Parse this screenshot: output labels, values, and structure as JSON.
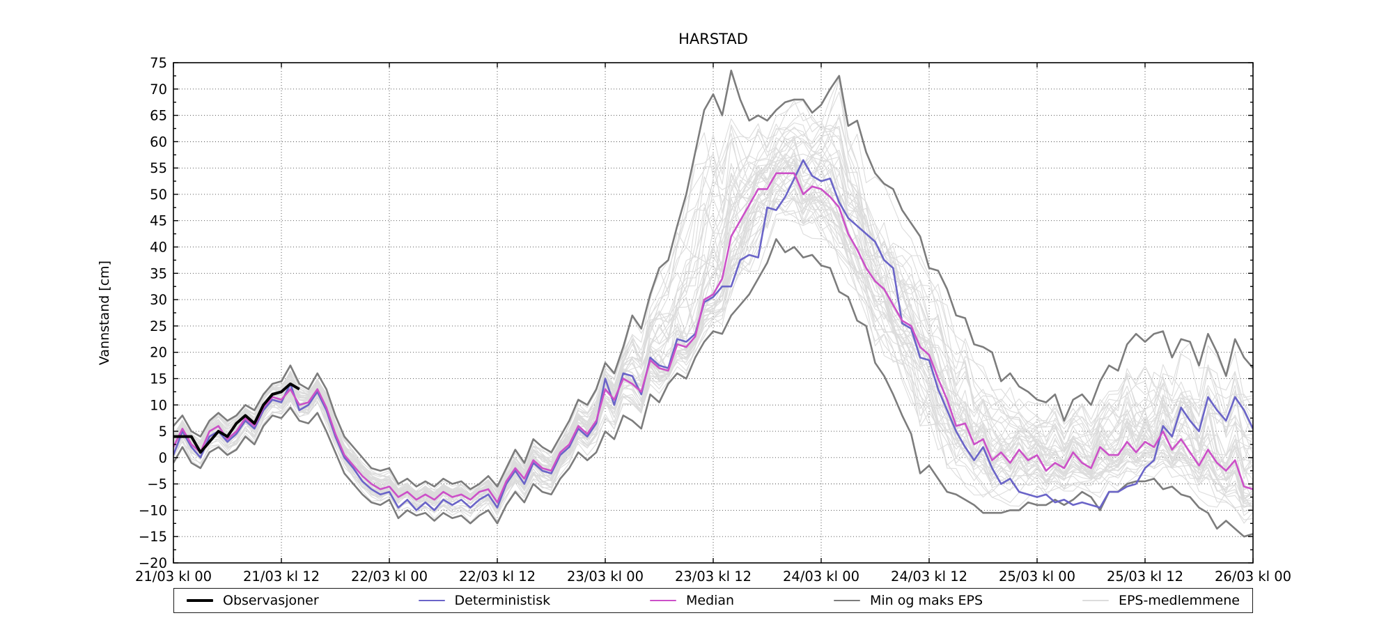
{
  "title": "HARSTAD",
  "ylabel": "Vannstand [cm]",
  "axes": {
    "x_tick_hours": [
      0,
      12,
      24,
      36,
      48,
      60,
      72,
      84,
      96,
      108,
      120
    ],
    "x_tick_labels": [
      "21/03 kl 00",
      "21/03 kl 12",
      "22/03 kl 00",
      "22/03 kl 12",
      "23/03 kl 00",
      "23/03 kl 12",
      "24/03 kl 00",
      "24/03 kl 12",
      "25/03 kl 00",
      "25/03 kl 12",
      "26/03 kl 00"
    ],
    "y_tick_values": [
      -20,
      -15,
      -10,
      -5,
      0,
      5,
      10,
      15,
      20,
      25,
      30,
      35,
      40,
      45,
      50,
      55,
      60,
      65,
      70,
      75
    ],
    "y_tick_labels": [
      "−20",
      "−15",
      "−10",
      "−5",
      "0",
      "5",
      "10",
      "15",
      "20",
      "25",
      "30",
      "35",
      "40",
      "45",
      "50",
      "55",
      "60",
      "65",
      "70",
      "75"
    ],
    "y_minor_step": 2.5,
    "x_range_hours": [
      0,
      120
    ],
    "y_range": [
      -20,
      75
    ],
    "grid": "dotted"
  },
  "legend": {
    "items": [
      {
        "label": "Observasjoner",
        "color": "#000000",
        "width": 4
      },
      {
        "label": "Deterministisk",
        "color": "#6a64c8",
        "width": 2.6
      },
      {
        "label": "Median",
        "color": "#cc50c8",
        "width": 2.6
      },
      {
        "label": "Min og maks EPS",
        "color": "#7c7c7c",
        "width": 2.6
      },
      {
        "label": "EPS-medlemmene",
        "color": "#dcdcdc",
        "width": 1.2
      }
    ]
  },
  "chart_data": {
    "type": "line",
    "title": "HARSTAD",
    "xlabel": "",
    "ylabel": "Vannstand [cm]",
    "x_unit": "hours since 21/03 kl 00",
    "ylim": [
      -20,
      75
    ],
    "xlim_hours": [
      0,
      120
    ],
    "legend_position": "bottom",
    "series": [
      {
        "name": "Observasjoner",
        "color": "#000000",
        "width": 4,
        "x_start": 0,
        "x_step": 1,
        "values": [
          4,
          4,
          4,
          1,
          3,
          5,
          4,
          6.5,
          8,
          6.5,
          10,
          12,
          12.5,
          14,
          13
        ]
      },
      {
        "name": "Deterministisk",
        "color": "#6a64c8",
        "width": 2.6,
        "x_start": 0,
        "x_step": 1,
        "values": [
          0.5,
          5,
          2,
          0,
          4,
          5,
          3,
          4.5,
          7,
          5.5,
          9,
          11,
          10.5,
          14,
          9,
          10,
          12.5,
          9,
          4,
          0,
          -2,
          -4.5,
          -6,
          -7,
          -6.5,
          -9.5,
          -8,
          -10,
          -8.5,
          -10,
          -8,
          -9,
          -8,
          -9.5,
          -8,
          -7,
          -9.5,
          -5,
          -2.5,
          -5,
          -1,
          -2.5,
          -3,
          0.5,
          2,
          5.5,
          4,
          6.5,
          15,
          10,
          16,
          15.5,
          12,
          19,
          17.5,
          17,
          22.5,
          22,
          23.5,
          29.5,
          30.5,
          32.5,
          32.5,
          37.5,
          38.5,
          38,
          47.5,
          47,
          49.5,
          53,
          56.5,
          53.5,
          52.5,
          53,
          48.5,
          45.5,
          44,
          42.5,
          41,
          37.5,
          36,
          25.5,
          24.5,
          19,
          18.5,
          13,
          9,
          5,
          2,
          -0.5,
          2,
          -2,
          -5,
          -4,
          -6.5,
          -7,
          -7.5,
          -7,
          -8.5,
          -8,
          -9,
          -8.5,
          -9,
          -9.5,
          -6.5,
          -6.5,
          -5.5,
          -5,
          -2,
          -0.5,
          6,
          4,
          9.5,
          7,
          5,
          11.5,
          9,
          7,
          11.5,
          9,
          5.5
        ]
      },
      {
        "name": "Median",
        "color": "#cc50c8",
        "width": 2.6,
        "x_start": 0,
        "x_step": 1,
        "values": [
          2,
          5.5,
          2.5,
          1,
          5,
          6,
          3.5,
          5,
          7.5,
          6,
          9.5,
          11.5,
          11,
          13,
          10,
          10.5,
          13,
          9.5,
          4.5,
          0.5,
          -1.5,
          -3.5,
          -5,
          -6,
          -5.5,
          -7.5,
          -6.5,
          -8,
          -7,
          -8,
          -6.5,
          -7.5,
          -7,
          -8,
          -6.5,
          -6,
          -8.5,
          -4.5,
          -2,
          -4,
          -0.5,
          -2,
          -2.5,
          1,
          2.5,
          6,
          4.5,
          7,
          13,
          11,
          15,
          14,
          12.5,
          18.5,
          17,
          16.5,
          21.5,
          21,
          23,
          30,
          31,
          34,
          42,
          45,
          48,
          51,
          51,
          54,
          54,
          54,
          50,
          51.5,
          51,
          49.5,
          47.5,
          42.5,
          39.5,
          36,
          33.5,
          32,
          29,
          26,
          25,
          21,
          19.5,
          15,
          11,
          6,
          6.5,
          2.5,
          3.5,
          -0.5,
          1,
          -1,
          1.5,
          -0.5,
          0.5,
          -2.5,
          -1,
          -2,
          1,
          -1,
          -2,
          2,
          0.5,
          0.5,
          3,
          1,
          3,
          2,
          5,
          1.5,
          3.5,
          1,
          -1.5,
          1.5,
          -1,
          -2.5,
          -0.5,
          -5.5,
          -6
        ]
      },
      {
        "name": "Maks EPS",
        "color": "#7c7c7c",
        "width": 2.6,
        "x_start": 0,
        "x_step": 1,
        "values": [
          6,
          8,
          5,
          4,
          7,
          8.5,
          7,
          8,
          10,
          9,
          12,
          14,
          14.5,
          17.5,
          14,
          13,
          16,
          13,
          8,
          4,
          2,
          0,
          -2,
          -2.5,
          -2,
          -5,
          -4,
          -5.5,
          -4.5,
          -5.5,
          -4,
          -5,
          -4.5,
          -6,
          -5,
          -3.5,
          -5.5,
          -2,
          1.5,
          -1,
          3.5,
          2,
          1,
          4,
          7,
          11,
          10,
          13,
          18,
          16,
          21,
          27,
          24.5,
          31,
          36,
          37.5,
          44,
          50,
          58,
          66,
          69,
          65,
          73.5,
          68,
          64,
          65,
          64,
          66,
          67.5,
          68,
          68,
          65.5,
          67,
          70,
          72.5,
          63,
          64,
          58,
          54,
          52,
          51,
          47,
          44.5,
          42,
          36,
          35.5,
          32,
          27,
          26.5,
          21.5,
          21,
          20,
          14.5,
          16,
          13.5,
          12.5,
          11,
          10.5,
          12,
          7,
          11,
          12,
          10,
          14.5,
          17.5,
          16.5,
          21.5,
          23.5,
          22,
          23.5,
          24,
          19,
          22.5,
          22,
          17.5,
          23.5,
          20,
          15.5,
          22.5,
          19,
          17
        ]
      },
      {
        "name": "Min EPS",
        "color": "#7c7c7c",
        "width": 2.6,
        "x_start": 0,
        "x_step": 1,
        "values": [
          -1,
          2,
          -1,
          -2,
          1,
          2,
          0.5,
          1.5,
          4,
          2.5,
          6,
          8,
          7.5,
          9.5,
          7,
          6.5,
          8.5,
          5,
          1,
          -3,
          -5,
          -7,
          -8.5,
          -9,
          -8,
          -11.5,
          -10,
          -11,
          -10.5,
          -12,
          -10.5,
          -11.5,
          -11,
          -12.5,
          -11,
          -10,
          -12.5,
          -9,
          -6.5,
          -8.5,
          -5,
          -6.5,
          -7,
          -4,
          -2,
          1,
          -0.5,
          1,
          5,
          3.5,
          8,
          7,
          5.5,
          12,
          10.5,
          14,
          16,
          15,
          19,
          22,
          24,
          23.5,
          27,
          29,
          31,
          34,
          37,
          41.5,
          39,
          40,
          38,
          38.5,
          36.5,
          36,
          31.5,
          30.5,
          26,
          25,
          18,
          15.5,
          12,
          8,
          4.5,
          -3,
          -1.5,
          -4,
          -6.5,
          -7,
          -8,
          -9,
          -10.5,
          -10.5,
          -10.5,
          -10,
          -10,
          -8.5,
          -9,
          -9,
          -8,
          -9,
          -8,
          -6.5,
          -7.5,
          -10,
          -6.5,
          -6.5,
          -5,
          -4.5,
          -4.5,
          -4,
          -6,
          -5.5,
          -7,
          -7.5,
          -9.5,
          -10.5,
          -13.5,
          -12,
          -13.5,
          -15,
          -14.5
        ]
      }
    ],
    "eps_members": {
      "name": "EPS-medlemmene",
      "count": 50,
      "seed": 1234,
      "color": "#dcdcdc",
      "width": 1.1,
      "description": "ensemble member traces spread between Min EPS and Maks EPS around the Median"
    }
  }
}
